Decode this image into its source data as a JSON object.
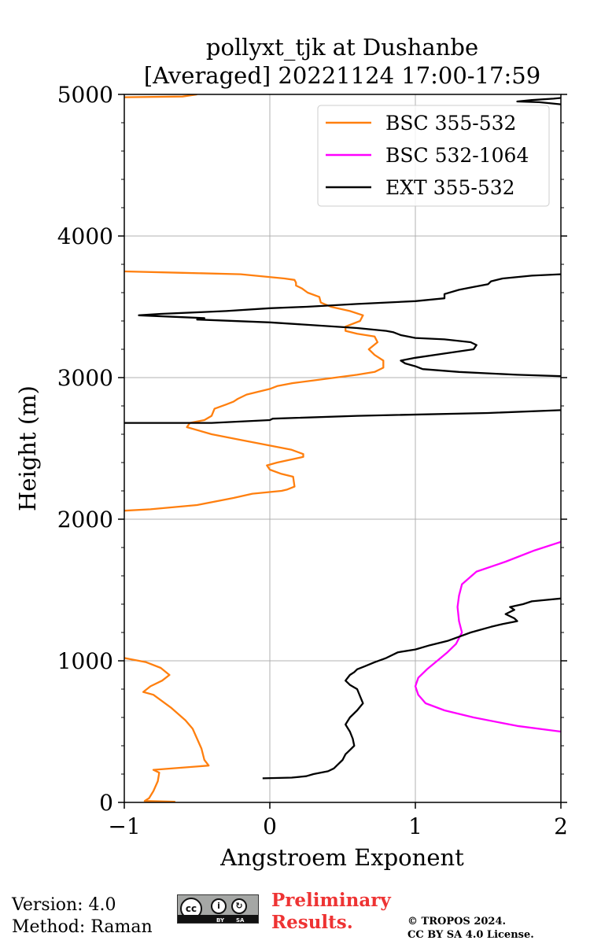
{
  "chart_data": {
    "type": "line",
    "title": "pollyxt_tjk at Dushanbe",
    "subtitle": "[Averaged] 20221124 17:00-17:59",
    "xlabel": "Angstroem Exponent",
    "ylabel": "Height (m)",
    "xlim": [
      -1,
      2
    ],
    "ylim": [
      0,
      5000
    ],
    "xticks": [
      -1,
      0,
      1,
      2
    ],
    "xtick_labels": [
      "−1",
      "0",
      "1",
      "2"
    ],
    "yticks": [
      0,
      1000,
      2000,
      3000,
      4000,
      5000
    ],
    "ytick_labels": [
      "0",
      "1000",
      "2000",
      "3000",
      "4000",
      "5000"
    ],
    "grid": true,
    "legend_position": "top-right",
    "series": [
      {
        "name": "BSC 355-532",
        "color": "#ff7f0e",
        "segments": [
          [
            [
              -0.65,
              5
            ],
            [
              -0.86,
              10
            ],
            [
              -0.83,
              30
            ],
            [
              -0.8,
              80
            ],
            [
              -0.77,
              150
            ],
            [
              -0.76,
              210
            ],
            [
              -0.8,
              230
            ],
            [
              -0.42,
              260
            ],
            [
              -0.45,
              300
            ],
            [
              -0.47,
              380
            ],
            [
              -0.5,
              450
            ],
            [
              -0.53,
              520
            ],
            [
              -0.58,
              580
            ],
            [
              -0.68,
              670
            ],
            [
              -0.8,
              760
            ],
            [
              -0.87,
              780
            ],
            [
              -0.82,
              820
            ],
            [
              -0.74,
              860
            ],
            [
              -0.69,
              900
            ],
            [
              -0.75,
              950
            ],
            [
              -0.85,
              990
            ],
            [
              -0.95,
              1010
            ],
            [
              -1.0,
              1020
            ]
          ],
          [
            [
              -1.0,
              2060
            ],
            [
              -0.82,
              2070
            ],
            [
              -0.5,
              2100
            ],
            [
              -0.25,
              2150
            ],
            [
              -0.12,
              2180
            ],
            [
              0.08,
              2200
            ],
            [
              0.12,
              2210
            ],
            [
              0.17,
              2230
            ],
            [
              0.16,
              2300
            ],
            [
              0.08,
              2320
            ],
            [
              0.0,
              2350
            ],
            [
              -0.02,
              2380
            ],
            [
              0.05,
              2400
            ],
            [
              0.23,
              2440
            ],
            [
              0.23,
              2460
            ],
            [
              0.15,
              2490
            ],
            [
              0.0,
              2520
            ],
            [
              -0.2,
              2560
            ],
            [
              -0.4,
              2600
            ],
            [
              -0.57,
              2650
            ],
            [
              -0.55,
              2680
            ],
            [
              -0.45,
              2700
            ],
            [
              -0.4,
              2730
            ],
            [
              -0.38,
              2780
            ],
            [
              -0.3,
              2810
            ],
            [
              -0.25,
              2830
            ],
            [
              -0.22,
              2850
            ],
            [
              -0.16,
              2880
            ],
            [
              -0.08,
              2900
            ],
            [
              0.0,
              2920
            ],
            [
              0.05,
              2940
            ],
            [
              0.15,
              2960
            ],
            [
              0.3,
              2980
            ],
            [
              0.45,
              3000
            ],
            [
              0.6,
              3020
            ],
            [
              0.72,
              3040
            ],
            [
              0.78,
              3070
            ],
            [
              0.78,
              3120
            ],
            [
              0.72,
              3160
            ],
            [
              0.68,
              3200
            ],
            [
              0.74,
              3250
            ],
            [
              0.72,
              3290
            ],
            [
              0.6,
              3310
            ],
            [
              0.52,
              3330
            ],
            [
              0.52,
              3360
            ],
            [
              0.62,
              3400
            ],
            [
              0.64,
              3440
            ],
            [
              0.55,
              3470
            ],
            [
              0.42,
              3500
            ],
            [
              0.35,
              3530
            ],
            [
              0.34,
              3570
            ],
            [
              0.26,
              3600
            ],
            [
              0.22,
              3630
            ],
            [
              0.18,
              3650
            ],
            [
              0.18,
              3670
            ],
            [
              0.17,
              3690
            ],
            [
              0.1,
              3700
            ],
            [
              -0.2,
              3730
            ],
            [
              -0.6,
              3740
            ],
            [
              -1.0,
              3750
            ]
          ],
          [
            [
              -1.0,
              4980
            ],
            [
              -0.6,
              4985
            ],
            [
              -0.5,
              5000
            ]
          ]
        ]
      },
      {
        "name": "BSC 532-1064",
        "color": "#ff00ff",
        "segments": [
          [
            [
              2.0,
              500
            ],
            [
              1.7,
              540
            ],
            [
              1.4,
              600
            ],
            [
              1.2,
              650
            ],
            [
              1.07,
              700
            ],
            [
              1.02,
              760
            ],
            [
              1.0,
              820
            ],
            [
              1.02,
              880
            ],
            [
              1.08,
              940
            ],
            [
              1.15,
              1000
            ],
            [
              1.22,
              1060
            ],
            [
              1.28,
              1120
            ],
            [
              1.32,
              1200
            ],
            [
              1.3,
              1280
            ],
            [
              1.29,
              1380
            ],
            [
              1.3,
              1460
            ],
            [
              1.32,
              1540
            ],
            [
              1.42,
              1630
            ],
            [
              1.62,
              1700
            ],
            [
              1.82,
              1780
            ],
            [
              2.0,
              1840
            ]
          ]
        ]
      },
      {
        "name": "EXT 355-532",
        "color": "#000000",
        "segments": [
          [
            [
              -0.05,
              170
            ],
            [
              0.15,
              175
            ],
            [
              0.25,
              185
            ],
            [
              0.3,
              200
            ],
            [
              0.4,
              220
            ],
            [
              0.44,
              240
            ],
            [
              0.47,
              270
            ],
            [
              0.5,
              300
            ],
            [
              0.52,
              340
            ],
            [
              0.55,
              370
            ],
            [
              0.58,
              400
            ],
            [
              0.57,
              450
            ],
            [
              0.55,
              500
            ],
            [
              0.52,
              550
            ],
            [
              0.55,
              600
            ],
            [
              0.6,
              650
            ],
            [
              0.64,
              700
            ],
            [
              0.62,
              750
            ],
            [
              0.6,
              800
            ],
            [
              0.55,
              830
            ],
            [
              0.52,
              860
            ],
            [
              0.55,
              900
            ],
            [
              0.58,
              920
            ],
            [
              0.6,
              940
            ],
            [
              0.65,
              960
            ],
            [
              0.72,
              990
            ],
            [
              0.8,
              1020
            ],
            [
              0.88,
              1060
            ],
            [
              1.0,
              1080
            ],
            [
              1.1,
              1110
            ],
            [
              1.22,
              1140
            ],
            [
              1.3,
              1170
            ],
            [
              1.38,
              1200
            ],
            [
              1.45,
              1220
            ],
            [
              1.52,
              1240
            ],
            [
              1.6,
              1260
            ],
            [
              1.7,
              1280
            ],
            [
              1.68,
              1300
            ],
            [
              1.62,
              1330
            ],
            [
              1.68,
              1360
            ],
            [
              1.65,
              1380
            ],
            [
              1.74,
              1400
            ],
            [
              1.8,
              1420
            ],
            [
              2.0,
              1440
            ]
          ],
          [
            [
              -1.0,
              2680
            ],
            [
              -0.4,
              2680
            ],
            [
              0.0,
              2700
            ],
            [
              0.02,
              2710
            ],
            [
              0.6,
              2730
            ],
            [
              1.5,
              2750
            ],
            [
              2.0,
              2770
            ]
          ],
          [
            [
              2.0,
              3010
            ],
            [
              1.7,
              3020
            ],
            [
              1.3,
              3040
            ],
            [
              1.05,
              3060
            ],
            [
              1.0,
              3080
            ],
            [
              0.93,
              3100
            ],
            [
              0.9,
              3120
            ],
            [
              1.0,
              3140
            ],
            [
              1.2,
              3170
            ],
            [
              1.4,
              3200
            ],
            [
              1.42,
              3230
            ],
            [
              1.38,
              3250
            ],
            [
              1.2,
              3270
            ],
            [
              1.0,
              3280
            ],
            [
              0.9,
              3300
            ],
            [
              0.85,
              3320
            ],
            [
              0.8,
              3330
            ],
            [
              0.6,
              3350
            ],
            [
              0.3,
              3370
            ],
            [
              0.0,
              3390
            ],
            [
              -0.5,
              3410
            ],
            [
              -0.45,
              3420
            ],
            [
              -0.9,
              3440
            ],
            [
              -0.75,
              3450
            ],
            [
              -0.3,
              3470
            ],
            [
              0.0,
              3490
            ],
            [
              0.25,
              3500
            ],
            [
              0.6,
              3520
            ],
            [
              1.0,
              3540
            ],
            [
              1.2,
              3560
            ],
            [
              1.2,
              3590
            ],
            [
              1.3,
              3620
            ],
            [
              1.4,
              3640
            ],
            [
              1.45,
              3650
            ],
            [
              1.5,
              3660
            ],
            [
              1.52,
              3680
            ],
            [
              1.6,
              3700
            ],
            [
              1.8,
              3720
            ],
            [
              2.0,
              3730
            ]
          ],
          [
            [
              2.0,
              4930
            ],
            [
              1.85,
              4945
            ],
            [
              1.7,
              4950
            ],
            [
              1.8,
              4960
            ],
            [
              1.95,
              4970
            ],
            [
              2.0,
              4975
            ]
          ]
        ]
      }
    ]
  },
  "footer": {
    "version": "Version: 4.0",
    "method": "Method: Raman",
    "preliminary_line1": "Preliminary",
    "preliminary_line2": "Results.",
    "copyright_line1": "© TROPOS 2024.",
    "copyright_line2": "CC BY SA 4.0 License.",
    "license_badge_cc": "cc",
    "license_badge_by": "BY",
    "license_badge_sa": "SA"
  }
}
